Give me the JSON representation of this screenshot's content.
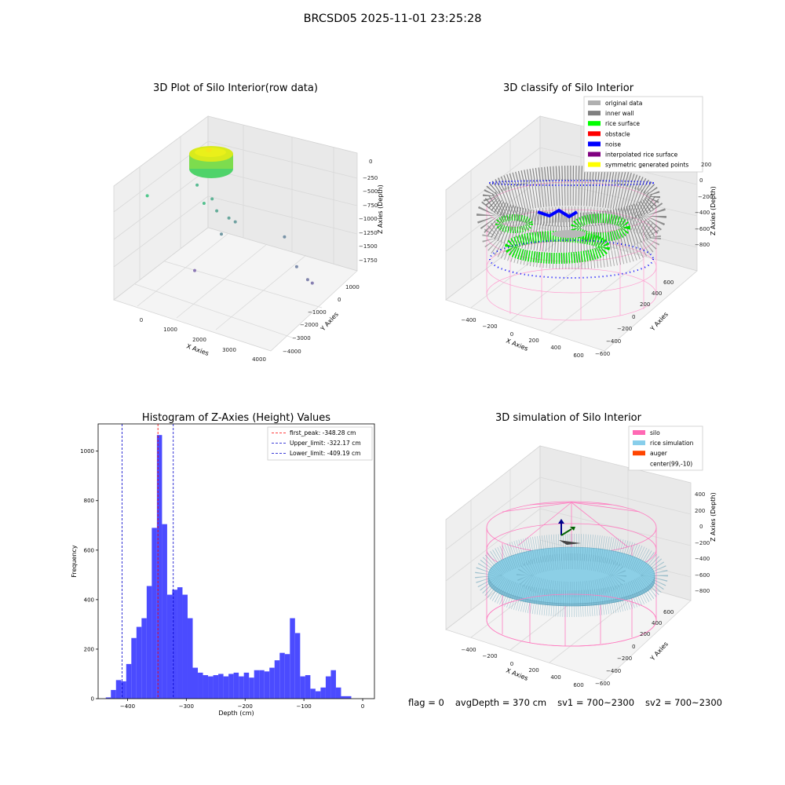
{
  "suptitle": "BRCSD05 2025-11-01 23:25:28",
  "status": {
    "flag": "flag = 0",
    "avg_depth": "avgDepth = 370 cm",
    "sv1": "sv1 = 700~2300",
    "sv2": "sv2 = 700~2300"
  },
  "colors": {
    "hist_bar": "#4b4bff",
    "peak_line": "#ff0000",
    "limit_line": "#0000cc",
    "silo": "#ff69b4",
    "rice_sim": "#87ceeb",
    "auger": "#ff4500",
    "noise": "#0000ff",
    "rice_surface": "#00ff00",
    "inner_wall": "#808080"
  },
  "chart_data": [
    {
      "type": "scatter",
      "title": "3D Plot of Silo Interior(row data)",
      "xlabel": "X Axies",
      "ylabel": "Y Axies",
      "zlabel": "Z Axies (Depth)",
      "x_ticks": [
        "0",
        "1000",
        "2000",
        "3000",
        "4000"
      ],
      "y_ticks": [
        "1000",
        "0",
        "−1000",
        "−2000",
        "−3000",
        "−4000"
      ],
      "z_ticks": [
        "0",
        "−250",
        "−500",
        "−750",
        "−1000",
        "−1250",
        "−1500",
        "−1750"
      ],
      "points": [
        {
          "x": 200,
          "y": -100,
          "z": -600
        },
        {
          "x": 1500,
          "y": -1200,
          "z": -600
        },
        {
          "x": 1500,
          "y": -800,
          "z": -300
        },
        {
          "x": 1600,
          "y": -1500,
          "z": -500
        },
        {
          "x": 1700,
          "y": -1600,
          "z": -700
        },
        {
          "x": 2000,
          "y": -1800,
          "z": -800
        },
        {
          "x": 2100,
          "y": -2000,
          "z": -850
        },
        {
          "x": 1800,
          "y": -1700,
          "z": -1100
        },
        {
          "x": 3200,
          "y": -3000,
          "z": -1000
        },
        {
          "x": 3500,
          "y": -3200,
          "z": -1500
        },
        {
          "x": 3700,
          "y": -3500,
          "z": -1700
        },
        {
          "x": 3800,
          "y": -3600,
          "z": -1750
        },
        {
          "x": 1000,
          "y": -1500,
          "z": -1800
        }
      ]
    },
    {
      "type": "scatter",
      "title": "3D classify of Silo Interior",
      "xlabel": "X Axies",
      "ylabel": "Y Axies",
      "zlabel": "Z Axies (Depth)",
      "x_ticks": [
        "−400",
        "−200",
        "0",
        "200",
        "400",
        "600"
      ],
      "y_ticks": [
        "600",
        "400",
        "200",
        "0",
        "−200",
        "−400",
        "−600"
      ],
      "z_ticks": [
        "200",
        "0",
        "−200",
        "−400",
        "−600",
        "−800"
      ],
      "legend": [
        {
          "label": "original data",
          "color": "#b0b0b0"
        },
        {
          "label": "inner wall",
          "color": "#808080"
        },
        {
          "label": "rice surface",
          "color": "#00ff00"
        },
        {
          "label": "obstacle",
          "color": "#ff0000"
        },
        {
          "label": "noise",
          "color": "#0000ff"
        },
        {
          "label": "interpolated rice surface",
          "color": "#800080"
        },
        {
          "label": "symmetric generated points",
          "color": "#ffff00"
        }
      ]
    },
    {
      "type": "bar",
      "title": "Histogram of Z-Axies (Height) Values",
      "xlabel": "Depth (cm)",
      "ylabel": "Frequency",
      "xlim": [
        -450,
        20
      ],
      "ylim": [
        0,
        1110
      ],
      "x_ticks": [
        -400,
        -300,
        -200,
        -100,
        0
      ],
      "y_ticks": [
        0,
        200,
        400,
        600,
        800,
        1000
      ],
      "bin_width": 8.7,
      "bin_start": -437,
      "values": [
        5,
        35,
        75,
        70,
        140,
        245,
        290,
        325,
        455,
        690,
        1065,
        705,
        420,
        440,
        450,
        420,
        325,
        125,
        105,
        95,
        90,
        95,
        100,
        90,
        100,
        105,
        90,
        105,
        85,
        115,
        115,
        110,
        125,
        155,
        185,
        180,
        325,
        265,
        90,
        95,
        40,
        30,
        45,
        90,
        115,
        45,
        10,
        10
      ],
      "lines": [
        {
          "label": "first_peak: -348.28 cm",
          "x": -348.28,
          "color": "#ff0000"
        },
        {
          "label": "Upper_limit: -322.17 cm",
          "x": -322.17,
          "color": "#0000cc"
        },
        {
          "label": "Lower_limit: -409.19 cm",
          "x": -409.19,
          "color": "#0000cc"
        }
      ]
    },
    {
      "type": "scatter",
      "title": "3D simulation of Silo Interior",
      "xlabel": "X Axies",
      "ylabel": "Y Axies",
      "zlabel": "Z Axies (Depth)",
      "x_ticks": [
        "−400",
        "−200",
        "0",
        "200",
        "400",
        "600"
      ],
      "y_ticks": [
        "600",
        "400",
        "200",
        "0",
        "−200",
        "−400",
        "−600"
      ],
      "z_ticks": [
        "400",
        "200",
        "0",
        "−200",
        "−400",
        "−600",
        "−800"
      ],
      "legend": [
        {
          "label": "silo",
          "color": "#ff69b4"
        },
        {
          "label": "rice simulation",
          "color": "#87ceeb"
        },
        {
          "label": "auger",
          "color": "#ff4500"
        },
        {
          "label": "center(99,-10)",
          "color": ""
        }
      ]
    }
  ]
}
